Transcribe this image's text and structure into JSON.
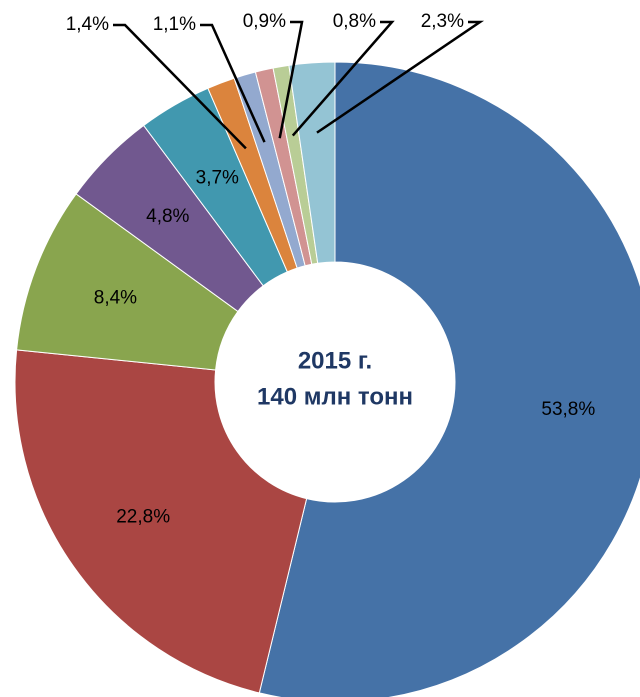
{
  "chart_data": {
    "type": "donut",
    "title": "2015 г.",
    "subtitle": "140 млн тонн",
    "values": [
      53.8,
      22.8,
      8.4,
      4.8,
      3.7,
      1.4,
      1.1,
      0.9,
      0.8,
      2.3
    ],
    "value_labels": [
      "53,8%",
      "22,8%",
      "8,4%",
      "4,8%",
      "3,7%",
      "1,4%",
      "1,1%",
      "0,9%",
      "0,8%",
      "2,3%"
    ],
    "colors": [
      "#4572a7",
      "#aa4643",
      "#89a54e",
      "#71588f",
      "#4198af",
      "#db843d",
      "#93a9cf",
      "#d19392",
      "#b9cd96",
      "#94c4d4"
    ]
  }
}
